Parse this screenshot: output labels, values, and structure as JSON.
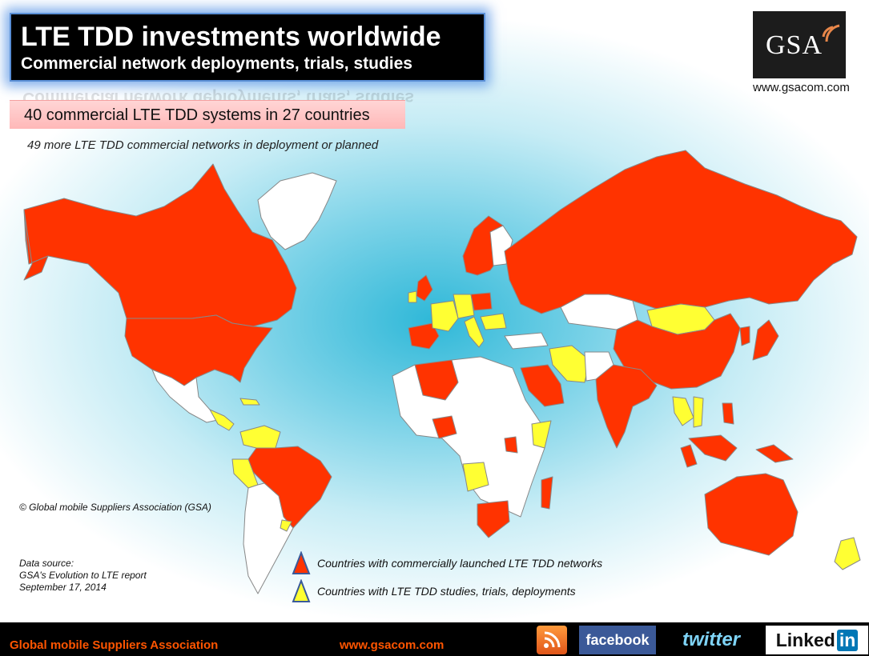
{
  "title": {
    "main": "LTE TDD investments worldwide",
    "sub": "Commercial network deployments, trials, studies"
  },
  "logo": {
    "text": "GSA",
    "url": "www.gsacom.com"
  },
  "headline": "40 commercial LTE TDD systems in 27 countries",
  "subline": "49 more LTE TDD commercial networks in deployment or planned",
  "copyright": "© Global mobile Suppliers Association (GSA)",
  "source": {
    "line1": "Data source:",
    "line2": "GSA's Evolution to LTE report",
    "line3": "September 17, 2014"
  },
  "legend": {
    "commercial": "Countries with commercially launched LTE TDD networks",
    "trials": "Countries with LTE TDD studies, trials, deployments"
  },
  "colors": {
    "commercial": "#ff3300",
    "trials": "#ffff33",
    "other": "#ffffff",
    "border": "#888888"
  },
  "footer": {
    "name": "Global mobile Suppliers Association",
    "url": "www.gsacom.com",
    "facebook": "facebook",
    "twitter": "twitter",
    "linkedin_a": "Linked",
    "linkedin_b": "in"
  }
}
